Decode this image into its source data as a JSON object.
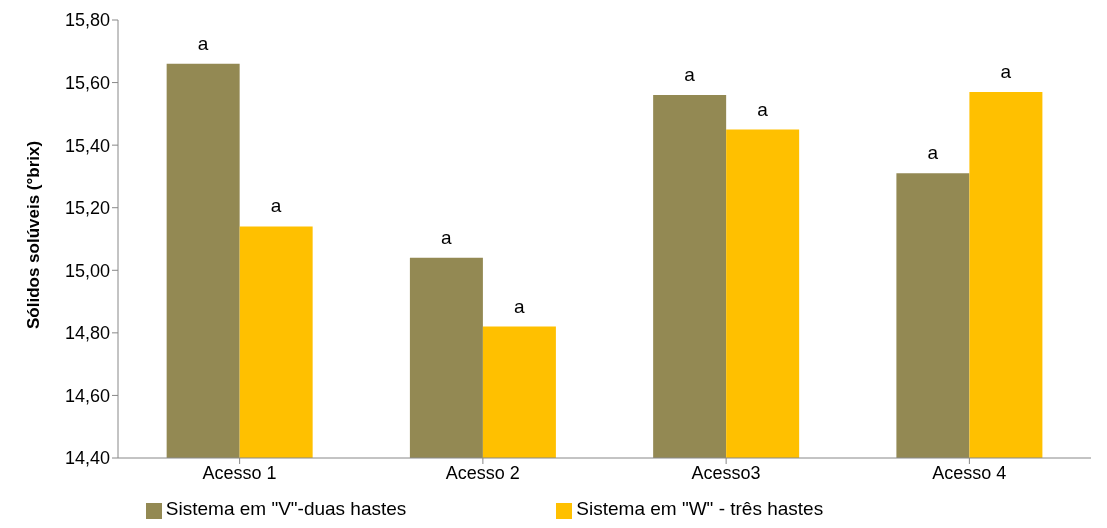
{
  "chart_data": {
    "type": "bar",
    "ylabel": "Sólidos solúveis (°brix)",
    "categories": [
      "Acesso 1",
      "Acesso 2",
      "Acesso3",
      "Acesso 4"
    ],
    "series": [
      {
        "name": "Sistema em \"V\"-duas hastes",
        "color": "#938953",
        "values": [
          15.66,
          15.04,
          15.56,
          15.31
        ],
        "value_labels": [
          "a",
          "a",
          "a",
          "a"
        ]
      },
      {
        "name": "Sistema em \"W\"  - três hastes",
        "color": "#ffc000",
        "values": [
          15.14,
          14.82,
          15.45,
          15.57
        ],
        "value_labels": [
          "a",
          "a",
          "a",
          "a"
        ]
      }
    ],
    "ylim": [
      14.4,
      15.8
    ],
    "yticks": [
      {
        "value": 14.4,
        "label": "14,40"
      },
      {
        "value": 14.6,
        "label": "14,60"
      },
      {
        "value": 14.8,
        "label": "14,80"
      },
      {
        "value": 15.0,
        "label": "15,00"
      },
      {
        "value": 15.2,
        "label": "15,20"
      },
      {
        "value": 15.4,
        "label": "15,40"
      },
      {
        "value": 15.6,
        "label": "15,60"
      },
      {
        "value": 15.8,
        "label": "15,80"
      }
    ],
    "grid": false,
    "legend": "bottom"
  }
}
